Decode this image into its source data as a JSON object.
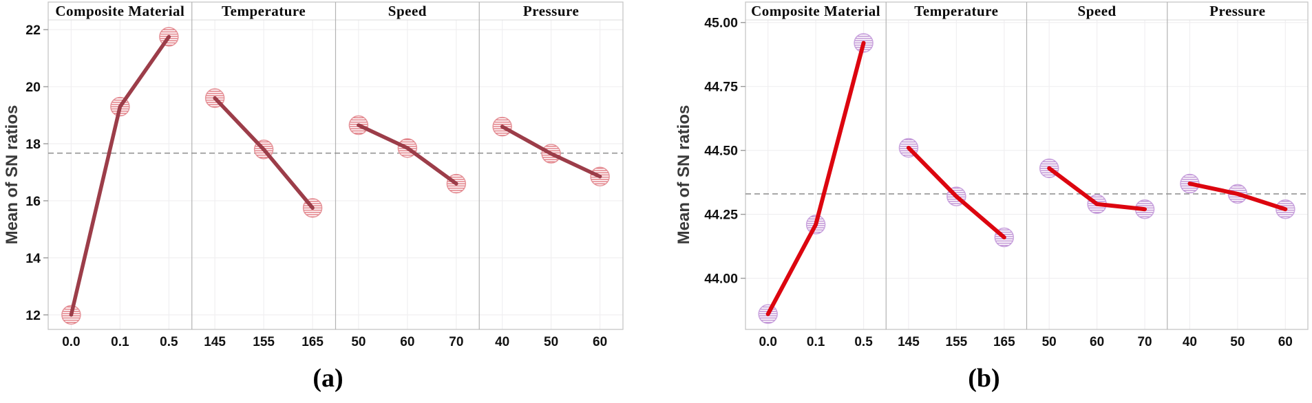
{
  "figure_ylabel": "Mean of SN ratios",
  "style": {
    "background": "#ffffff",
    "grid_color": "#f0eff1",
    "border_color": "#c6c6c6",
    "separator_color": "#b2b2b2",
    "header_underline_color": "#dbdbdb",
    "mean_line_color": "#949494",
    "tick_mark_color": "#9a9a9a",
    "tick_label_color": "#111111",
    "header_text_color": "#0a0a0a",
    "ytitle_color": "#3a3a3a"
  },
  "chart_data": [
    {
      "id": "a",
      "caption": "(a)",
      "type": "line",
      "ylabel": "Mean of SN ratios",
      "ylim": [
        11.49,
        22.34
      ],
      "yticks": [
        "12",
        "14",
        "16",
        "18",
        "20",
        "22"
      ],
      "mean_line": 17.67,
      "line_color": "#9c3d49",
      "marker_edge_color": "#e59399",
      "marker_hatch_color": "#e0777e",
      "line_width": 5.5,
      "panels": [
        {
          "title": "Composite Material",
          "categories": [
            "0.0",
            "0.1",
            "0.5"
          ],
          "values": [
            12.0,
            19.3,
            21.75
          ]
        },
        {
          "title": "Temperature",
          "categories": [
            "145",
            "155",
            "165"
          ],
          "values": [
            19.6,
            17.8,
            15.75
          ]
        },
        {
          "title": "Speed",
          "categories": [
            "50",
            "60",
            "70"
          ],
          "values": [
            18.65,
            17.85,
            16.6
          ]
        },
        {
          "title": "Pressure",
          "categories": [
            "40",
            "50",
            "60"
          ],
          "values": [
            18.6,
            17.65,
            16.85
          ]
        }
      ]
    },
    {
      "id": "b",
      "caption": "(b)",
      "type": "line",
      "ylabel": "Mean of SN ratios",
      "ylim": [
        43.8,
        45.01
      ],
      "yticks": [
        "44.00",
        "44.25",
        "44.50",
        "44.75",
        "45.00"
      ],
      "mean_line": 44.33,
      "line_color": "#dc050f",
      "marker_edge_color": "#c9a3de",
      "marker_hatch_color": "#bd8fd2",
      "line_width": 6,
      "panels": [
        {
          "title": "Composite Material",
          "categories": [
            "0.0",
            "0.1",
            "0.5"
          ],
          "values": [
            43.86,
            44.21,
            44.92
          ]
        },
        {
          "title": "Temperature",
          "categories": [
            "145",
            "155",
            "165"
          ],
          "values": [
            44.51,
            44.32,
            44.16
          ]
        },
        {
          "title": "Speed",
          "categories": [
            "50",
            "60",
            "70"
          ],
          "values": [
            44.43,
            44.29,
            44.27
          ]
        },
        {
          "title": "Pressure",
          "categories": [
            "40",
            "50",
            "60"
          ],
          "values": [
            44.37,
            44.33,
            44.27
          ]
        }
      ]
    }
  ]
}
